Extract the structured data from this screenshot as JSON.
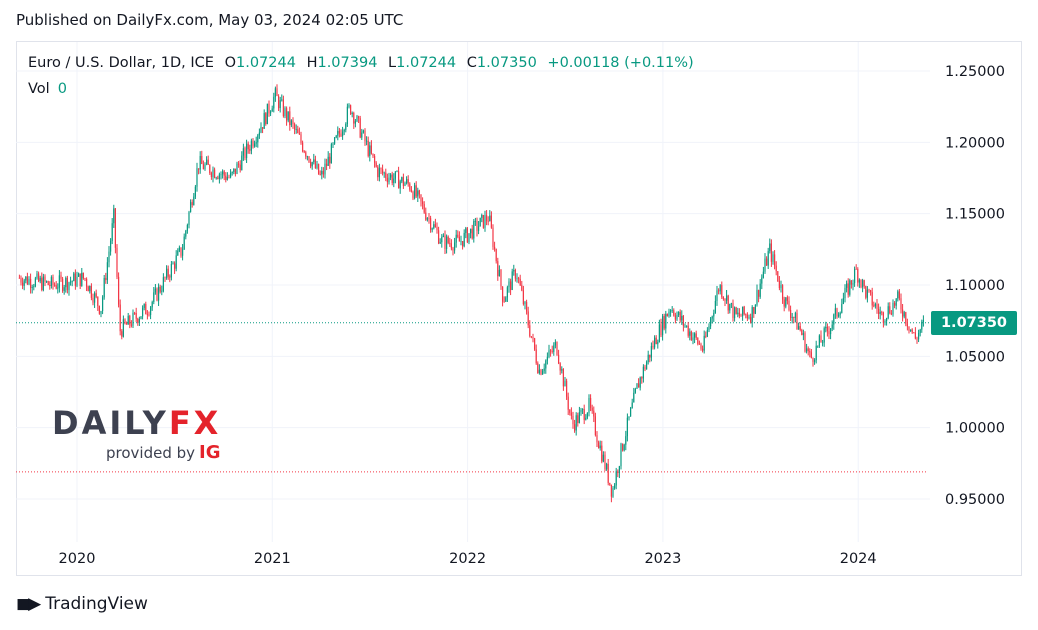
{
  "header": {
    "published": "Published on DailyFx.com, May 03, 2024 02:05 UTC"
  },
  "legend": {
    "symbol": "Euro / U.S. Dollar, 1D, ICE",
    "open_label": "O",
    "open": "1.07244",
    "high_label": "H",
    "high": "1.07394",
    "low_label": "L",
    "low": "1.07244",
    "close_label": "C",
    "close": "1.07350",
    "change": "+0.00118 (+0.11%)",
    "volume_label": "Vol",
    "volume": "0"
  },
  "watermark": {
    "brand_main": "DAILY",
    "brand_accent": "FX",
    "provided_by": "provided by",
    "provider": "IG"
  },
  "footer": {
    "brand": "TradingView"
  },
  "colors": {
    "up": "#089981",
    "down": "#f23645",
    "grid": "#f0f3fa",
    "brand_red": "#e4232b",
    "text": "#131722"
  },
  "chart_data": {
    "type": "candlestick",
    "title": "Euro / U.S. Dollar, 1D, ICE",
    "x_tick_labels": [
      "2020",
      "2021",
      "2022",
      "2023",
      "2024"
    ],
    "y_tick_labels": [
      "1.25000",
      "1.20000",
      "1.15000",
      "1.10000",
      "1.05000",
      "1.00000",
      "0.95000"
    ],
    "ylim": [
      0.925,
      1.265
    ],
    "last_price": "1.07350",
    "reference_line": 0.969,
    "series": [
      {
        "name": "EURUSD",
        "x": [
          "2019-09",
          "2019-11",
          "2020-01",
          "2020-02",
          "2020-03-09",
          "2020-03-20",
          "2020-05",
          "2020-07",
          "2020-08",
          "2020-10",
          "2020-12",
          "2021-01-06",
          "2021-03-31",
          "2021-05-25",
          "2021-07",
          "2021-09",
          "2021-11",
          "2021-12",
          "2022-02-10",
          "2022-03-07",
          "2022-03-31",
          "2022-05-13",
          "2022-06",
          "2022-07-14",
          "2022-08",
          "2022-09-28",
          "2022-10",
          "2022-11",
          "2022-12",
          "2023-01",
          "2023-03",
          "2023-04",
          "2023-05",
          "2023-06",
          "2023-07-18",
          "2023-08",
          "2023-09",
          "2023-10-03",
          "2023-11",
          "2023-12-28",
          "2024-01",
          "2024-02",
          "2024-03",
          "2024-04-16",
          "2024-05-03"
        ],
        "y": [
          1.105,
          1.1,
          1.105,
          1.083,
          1.148,
          1.068,
          1.085,
          1.125,
          1.185,
          1.175,
          1.215,
          1.233,
          1.175,
          1.225,
          1.18,
          1.17,
          1.13,
          1.13,
          1.148,
          1.09,
          1.11,
          1.04,
          1.058,
          1.002,
          1.015,
          0.955,
          0.985,
          1.03,
          1.06,
          1.085,
          1.055,
          1.1,
          1.078,
          1.08,
          1.125,
          1.09,
          1.068,
          1.048,
          1.075,
          1.11,
          1.095,
          1.078,
          1.09,
          1.062,
          1.0735
        ]
      }
    ]
  }
}
